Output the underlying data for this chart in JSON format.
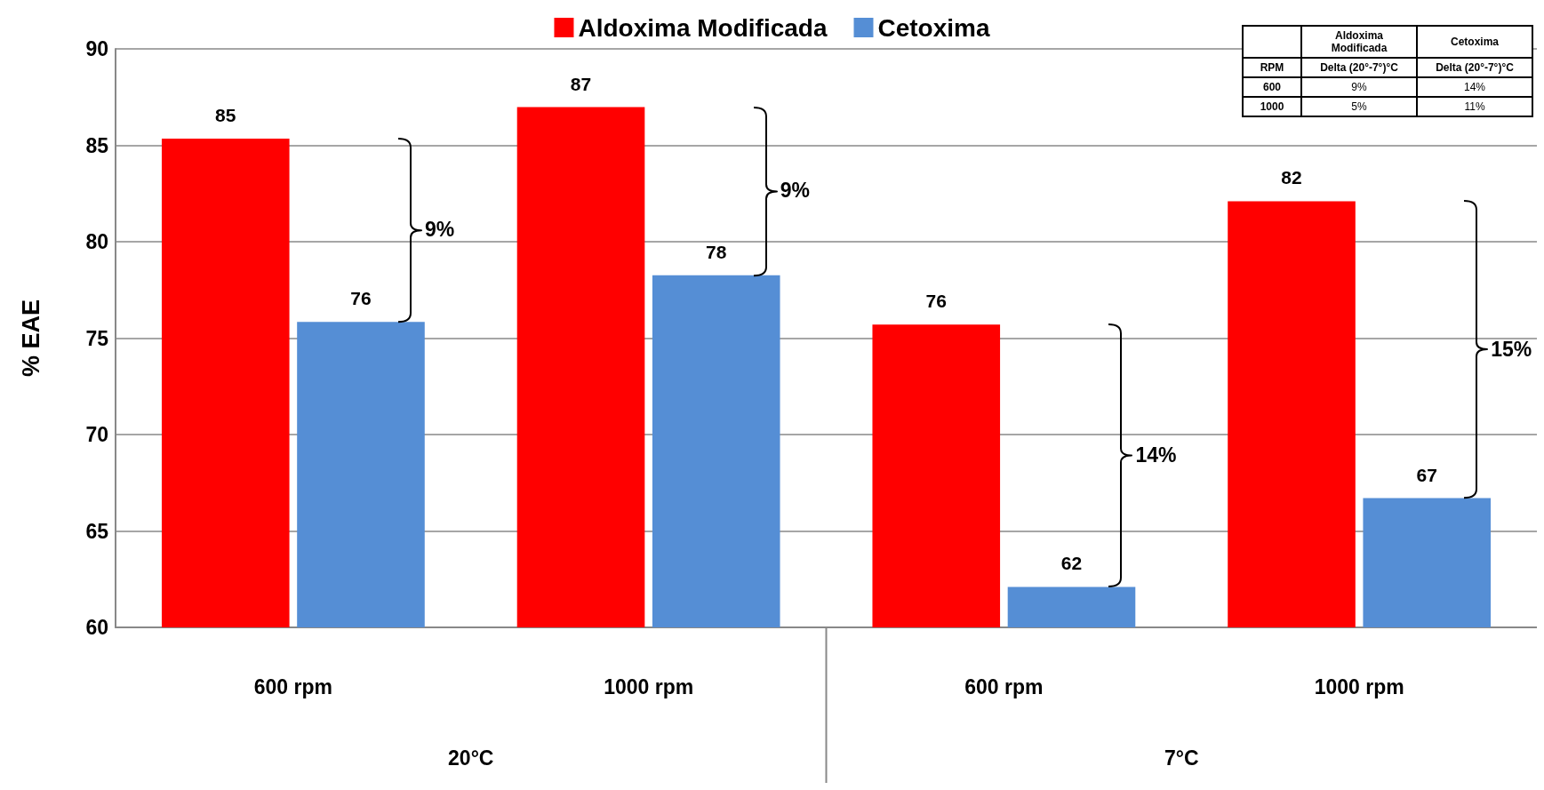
{
  "chart_data": [
    {
      "type": "bar",
      "ylabel": "% EAE",
      "categories": [
        "600 rpm",
        "1000 rpm",
        "600 rpm",
        "1000 rpm"
      ],
      "series": [
        {
          "name": "Aldoxima Modificada",
          "color": "#ff0000",
          "values": [
            85.35,
            86.98,
            75.7,
            82.1
          ],
          "value_labels": [
            "85",
            "87",
            "76",
            "82"
          ]
        },
        {
          "name": "Cetoxima",
          "color": "#558ed5",
          "values": [
            75.84,
            78.26,
            62.1,
            66.7
          ],
          "value_labels": [
            "76",
            "78",
            "62",
            "67"
          ]
        }
      ],
      "ylim": [
        60,
        90
      ],
      "yticks": [
        60,
        65,
        70,
        75,
        80,
        85,
        90
      ],
      "grid": "y",
      "legend": "top",
      "annotations": [
        "20°C",
        "7°C",
        "9%",
        "9%",
        "14%",
        "15%"
      ]
    },
    {
      "type": "other",
      "categories": [
        "Aldoxima Modificada",
        "Cetoxima"
      ],
      "y_categories": [
        "RPM",
        "600",
        "1000"
      ],
      "cell_labels": [
        [
          "Delta (20°-7°)°C",
          "Delta (20°-7°)°C"
        ],
        [
          "9%",
          "14%"
        ],
        [
          "5%",
          "11%"
        ]
      ]
    }
  ]
}
